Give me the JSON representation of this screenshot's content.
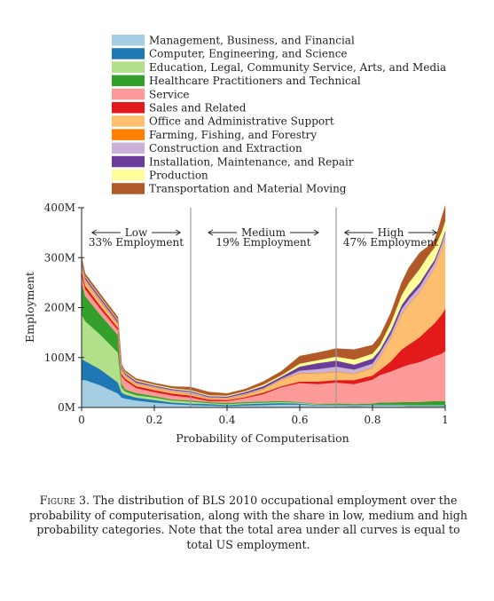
{
  "chart_data": {
    "type": "area",
    "stacked": true,
    "xlabel": "Probability of Computerisation",
    "ylabel": "Employment",
    "xlim": [
      0,
      1
    ],
    "ylim": [
      0,
      400
    ],
    "x_ticks": [
      0,
      0.2,
      0.4,
      0.6,
      0.8,
      1
    ],
    "x_tick_labels": [
      "0",
      "0.2",
      "0.4",
      "0.6",
      "0.8",
      "1"
    ],
    "y_ticks": [
      0,
      100,
      200,
      300,
      400
    ],
    "y_tick_labels": [
      "0M",
      "100M",
      "200M",
      "300M",
      "400M"
    ],
    "thresholds": [
      0.3,
      0.7
    ],
    "regions": [
      {
        "label": "Low",
        "share": "33% Employment",
        "x_center": 0.15
      },
      {
        "label": "Medium",
        "share": "19% Employment",
        "x_center": 0.5
      },
      {
        "label": "High",
        "share": "47% Employment",
        "x_center": 0.85
      }
    ],
    "legend_position": "top",
    "x": [
      0,
      0.01,
      0.05,
      0.1,
      0.11,
      0.12,
      0.15,
      0.2,
      0.25,
      0.3,
      0.35,
      0.4,
      0.45,
      0.5,
      0.55,
      0.6,
      0.65,
      0.7,
      0.75,
      0.8,
      0.82,
      0.85,
      0.88,
      0.9,
      0.93,
      0.95,
      0.97,
      0.98,
      0.99,
      1.0
    ],
    "series": [
      {
        "name": "Management, Business, and Financial",
        "color": "#a6cee3",
        "values": [
          55,
          55,
          45,
          28,
          20,
          18,
          14,
          10,
          7,
          5,
          4,
          3,
          4,
          5,
          6,
          6,
          4,
          4,
          3,
          4,
          4,
          4,
          4,
          3,
          3,
          3,
          3,
          3,
          3,
          3
        ]
      },
      {
        "name": "Computer, Engineering, and Science",
        "color": "#1f78b4",
        "values": [
          42,
          38,
          32,
          22,
          10,
          8,
          6,
          5,
          3,
          3,
          3,
          2,
          3,
          3,
          3,
          2,
          1,
          1,
          1,
          1,
          1,
          1,
          1,
          1,
          1,
          1,
          1,
          1,
          1,
          1
        ]
      },
      {
        "name": "Education, Legal, Community Service, Arts, and Media",
        "color": "#b2df8a",
        "values": [
          90,
          80,
          70,
          60,
          10,
          6,
          5,
          5,
          4,
          4,
          2,
          2,
          2,
          2,
          2,
          2,
          1,
          1,
          1,
          1,
          1,
          1,
          1,
          1,
          1,
          1,
          1,
          1,
          1,
          1
        ]
      },
      {
        "name": "Healthcare Practitioners and Technical",
        "color": "#33a02c",
        "values": [
          65,
          50,
          40,
          35,
          8,
          4,
          4,
          3,
          2,
          2,
          2,
          2,
          2,
          2,
          2,
          1,
          1,
          2,
          2,
          2,
          4,
          4,
          5,
          6,
          6,
          7,
          8,
          8,
          8,
          8
        ]
      },
      {
        "name": "Service",
        "color": "#fb9a99",
        "values": [
          15,
          14,
          12,
          10,
          15,
          18,
          10,
          8,
          8,
          6,
          2,
          4,
          8,
          15,
          28,
          38,
          40,
          42,
          40,
          48,
          55,
          62,
          70,
          75,
          80,
          85,
          90,
          92,
          95,
          100
        ]
      },
      {
        "name": "Sales and Related",
        "color": "#e31a1c",
        "values": [
          8,
          7,
          6,
          5,
          5,
          4,
          4,
          4,
          4,
          4,
          3,
          2,
          2,
          3,
          2,
          3,
          5,
          5,
          8,
          8,
          10,
          20,
          35,
          40,
          50,
          58,
          65,
          72,
          78,
          85
        ]
      },
      {
        "name": "Office and Administrative Support",
        "color": "#fdbf6f",
        "values": [
          10,
          8,
          8,
          6,
          6,
          5,
          4,
          4,
          4,
          3,
          2,
          2,
          4,
          6,
          12,
          16,
          16,
          16,
          12,
          15,
          25,
          45,
          70,
          80,
          90,
          100,
          110,
          120,
          130,
          140
        ]
      },
      {
        "name": "Farming, Fishing, and Forestry",
        "color": "#ff7f00",
        "values": [
          2,
          2,
          2,
          2,
          2,
          1,
          1,
          1,
          1,
          1,
          1,
          1,
          1,
          1,
          1,
          1,
          1,
          1,
          1,
          1,
          1,
          1,
          1,
          1,
          1,
          1,
          1,
          1,
          1,
          1
        ]
      },
      {
        "name": "Construction and Extraction",
        "color": "#cab2d6",
        "values": [
          3,
          3,
          3,
          2,
          2,
          2,
          2,
          2,
          2,
          3,
          2,
          2,
          2,
          2,
          2,
          5,
          8,
          10,
          8,
          8,
          8,
          8,
          10,
          10,
          10,
          10,
          10,
          10,
          10,
          10
        ]
      },
      {
        "name": "Installation, Maintenance, and Repair",
        "color": "#6a3d9a",
        "values": [
          5,
          4,
          4,
          4,
          3,
          3,
          3,
          2,
          2,
          2,
          2,
          2,
          3,
          4,
          4,
          8,
          12,
          12,
          10,
          10,
          6,
          8,
          8,
          8,
          8,
          7,
          6,
          5,
          5,
          5
        ]
      },
      {
        "name": "Production",
        "color": "#ffff99",
        "values": [
          2,
          2,
          2,
          2,
          2,
          2,
          2,
          2,
          2,
          2,
          2,
          2,
          2,
          3,
          3,
          6,
          6,
          8,
          10,
          10,
          10,
          15,
          20,
          25,
          28,
          28,
          25,
          22,
          20,
          20
        ]
      },
      {
        "name": "Transportation and Material Moving",
        "color": "#b15928",
        "values": [
          5,
          5,
          5,
          5,
          3,
          3,
          3,
          3,
          3,
          6,
          6,
          4,
          4,
          6,
          8,
          15,
          15,
          16,
          20,
          17,
          18,
          20,
          25,
          30,
          32,
          20,
          15,
          20,
          28,
          30
        ]
      }
    ]
  },
  "caption": {
    "label": "Figure 3.",
    "text": "The distribution of BLS 2010 occupational employment over the probability of computerisation, along with the share in low, medium and high probability categories. Note that the total area under all curves is equal to total US employment."
  }
}
